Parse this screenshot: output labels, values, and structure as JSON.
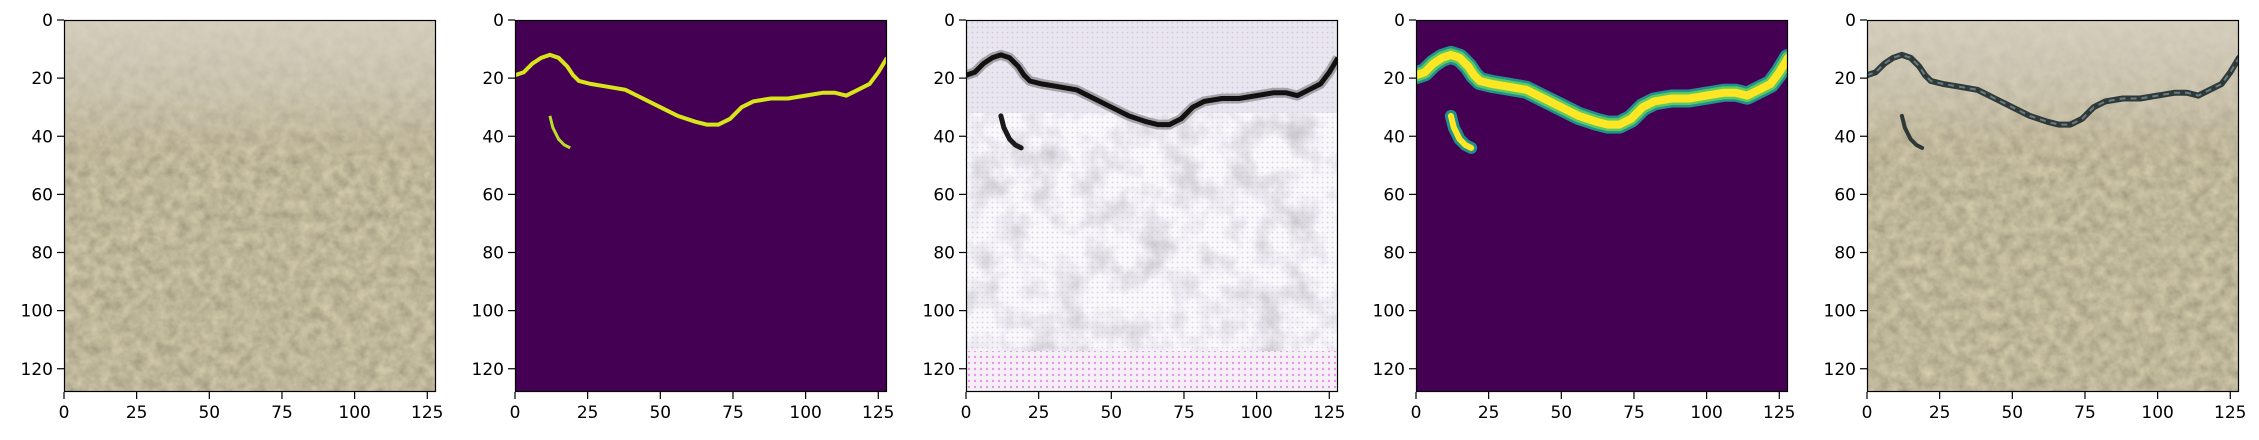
{
  "figure": {
    "panel_count": 5,
    "x_ticks": [
      "0",
      "25",
      "50",
      "75",
      "100",
      "125"
    ],
    "y_ticks": [
      "0",
      "20",
      "40",
      "60",
      "80",
      "100",
      "120"
    ],
    "x_tick_values": [
      0,
      25,
      50,
      75,
      100,
      125
    ],
    "y_tick_values": [
      0,
      20,
      40,
      60,
      80,
      100,
      120
    ],
    "image_extent": [
      0,
      128
    ],
    "panels": [
      {
        "content": "photo-input",
        "description": "concrete surface texture photo"
      },
      {
        "content": "label-mask",
        "description": "ground-truth crack mask"
      },
      {
        "content": "reconstruction",
        "description": "enhanced/edge image"
      },
      {
        "content": "prediction-mask",
        "description": "predicted crack mask"
      },
      {
        "content": "overlay",
        "description": "photo with predicted crack overlay"
      }
    ],
    "colors": {
      "mask_background": "#440154",
      "mask_crack_thin": "#d8e519",
      "mask_crack_thick": "#fde725",
      "mask_crack_edge": "#21918c",
      "concrete_base": "#8c7d60",
      "concrete_light": "#b5ab96",
      "crack_dark": "#1f2a2a"
    }
  }
}
